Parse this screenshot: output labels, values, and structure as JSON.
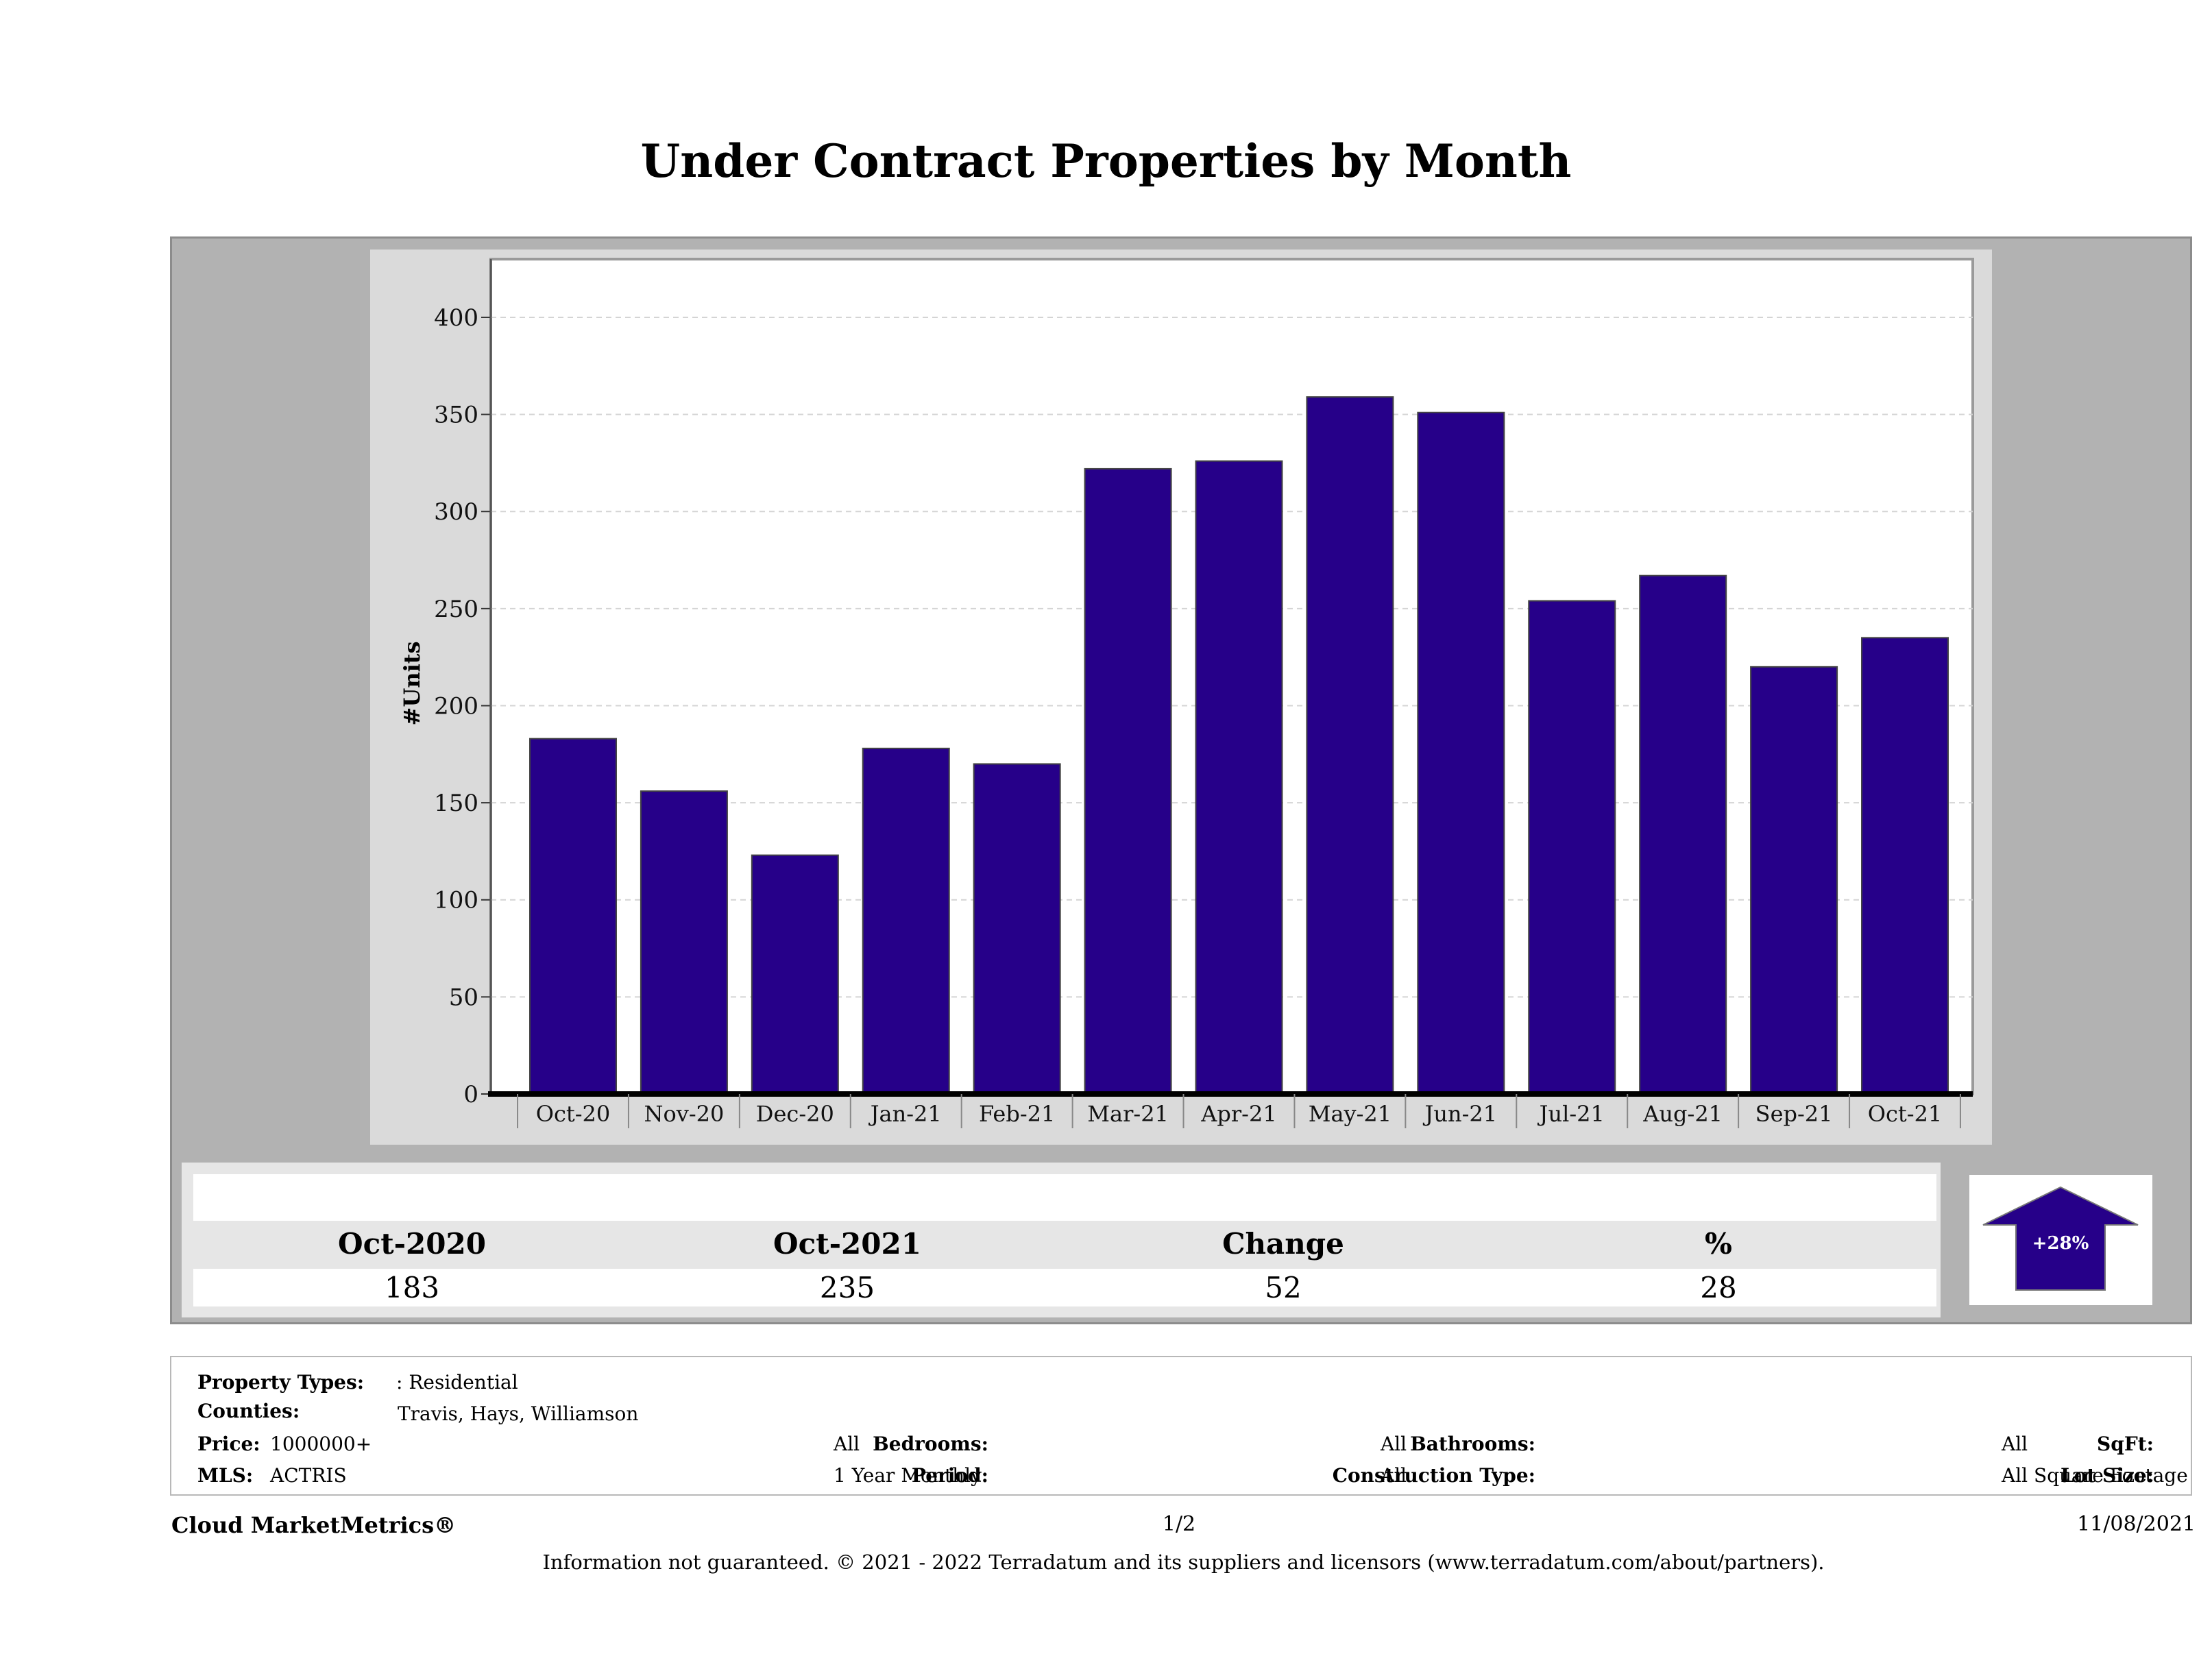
{
  "chart_data": {
    "type": "bar",
    "title": "Under Contract Properties by Month",
    "ylabel": "#Units",
    "xlabel": "",
    "ylim": [
      0,
      430
    ],
    "yticks": [
      0,
      50,
      100,
      150,
      200,
      250,
      300,
      350,
      400
    ],
    "grid": true,
    "categories": [
      "Oct-20",
      "Nov-20",
      "Dec-20",
      "Jan-21",
      "Feb-21",
      "Mar-21",
      "Apr-21",
      "May-21",
      "Jun-21",
      "Jul-21",
      "Aug-21",
      "Sep-21",
      "Oct-21"
    ],
    "values": [
      183,
      156,
      123,
      178,
      170,
      322,
      326,
      359,
      351,
      254,
      267,
      220,
      235
    ],
    "bar_color": "#260089"
  },
  "summary": {
    "headers": [
      "Oct-2020",
      "Oct-2021",
      "Change",
      "%"
    ],
    "values": [
      "183",
      "235",
      "52",
      "28"
    ],
    "badge": "+28%",
    "badge_color": "#260089"
  },
  "filters": {
    "property_types_label": "Property Types:",
    "property_types_value": ": Residential",
    "counties_label": "Counties:",
    "counties_value": "Travis, Hays, Williamson",
    "price_label": "Price:",
    "price_value": "1000000+",
    "mls_label": "MLS:",
    "mls_value": "ACTRIS",
    "bedrooms_label": "Bedrooms:",
    "bedrooms_value": "All",
    "period_label": "Period:",
    "period_value": "1 Year Monthly",
    "bathrooms_label": "Bathrooms:",
    "bathrooms_value": "All",
    "construction_label": "Construction Type:",
    "construction_value": "All",
    "sqft_label": "SqFt:",
    "sqft_value": "All",
    "lotsize_label": "Lot Size:",
    "lotsize_value": "All Square Footage"
  },
  "footer": {
    "brand": "Cloud MarketMetrics®",
    "page": "1/2",
    "date": "11/08/2021",
    "disclaimer": "Information not guaranteed. © 2021 - 2022 Terradatum and its suppliers and licensors (www.terradatum.com/about/partners)."
  }
}
